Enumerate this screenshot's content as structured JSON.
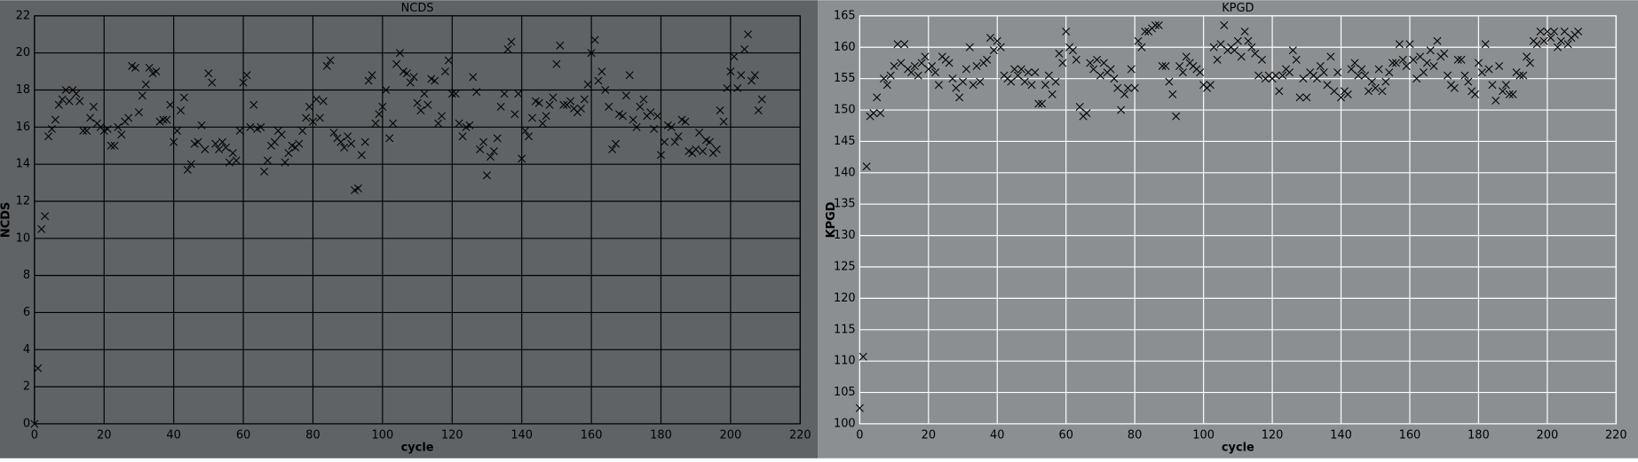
{
  "chart_data": [
    {
      "type": "scatter",
      "title": "NCDS",
      "x_label": "cycle",
      "y_label": "NCDS",
      "color": "#000000",
      "grid": true,
      "grid_color": "#000000",
      "xlim": [
        0,
        220
      ],
      "xticks": [
        0,
        20,
        40,
        60,
        80,
        100,
        120,
        140,
        160,
        180,
        200,
        220
      ],
      "ylim": [
        0,
        22
      ],
      "yticks": [
        0,
        2,
        4,
        6,
        8,
        10,
        12,
        14,
        16,
        18,
        20,
        22
      ],
      "x": [
        0,
        1,
        2,
        3,
        4,
        5,
        6,
        7,
        8,
        9,
        10,
        11,
        12,
        13,
        14,
        15,
        16,
        17,
        18,
        19,
        20,
        21,
        22,
        23,
        24,
        25,
        26,
        27,
        28,
        29,
        30,
        31,
        32,
        33,
        34,
        35,
        36,
        37,
        38,
        39,
        40,
        41,
        42,
        43,
        44,
        45,
        46,
        47,
        48,
        49,
        50,
        51,
        52,
        53,
        54,
        55,
        56,
        57,
        58,
        59,
        60,
        61,
        62,
        63,
        64,
        65,
        66,
        67,
        68,
        69,
        70,
        71,
        72,
        73,
        74,
        75,
        76,
        77,
        78,
        79,
        80,
        81,
        82,
        83,
        84,
        85,
        86,
        87,
        88,
        89,
        90,
        91,
        92,
        93,
        94,
        95,
        96,
        97,
        98,
        99,
        100,
        101,
        102,
        103,
        104,
        105,
        106,
        107,
        108,
        109,
        110,
        111,
        112,
        113,
        114,
        115,
        116,
        117,
        118,
        119,
        120,
        121,
        122,
        123,
        124,
        125,
        126,
        127,
        128,
        129,
        130,
        131,
        132,
        133,
        134,
        135,
        136,
        137,
        138,
        139,
        140,
        141,
        142,
        143,
        144,
        145,
        146,
        147,
        148,
        149,
        150,
        151,
        152,
        153,
        154,
        155,
        156,
        157,
        158,
        159,
        160,
        161,
        162,
        163,
        164,
        165,
        166,
        167,
        168,
        169,
        170,
        171,
        172,
        173,
        174,
        175,
        176,
        177,
        178,
        179,
        180,
        181,
        182,
        183,
        184,
        185,
        186,
        187,
        188,
        189,
        190,
        191,
        192,
        193,
        194,
        195,
        196,
        197,
        198,
        199,
        200,
        201,
        202,
        203,
        204,
        205,
        206,
        207,
        208,
        209
      ],
      "values": [
        0,
        3.0,
        10.5,
        11.2,
        15.5,
        15.9,
        16.4,
        17.2,
        17.5,
        18.0,
        17.4,
        18.0,
        17.8,
        17.4,
        15.8,
        15.8,
        16.5,
        17.1,
        16.2,
        16.0,
        15.8,
        15.9,
        15.0,
        15.0,
        16.0,
        15.6,
        16.3,
        16.5,
        19.3,
        19.2,
        16.8,
        17.7,
        18.3,
        19.2,
        18.9,
        19.0,
        16.3,
        16.4,
        16.4,
        17.2,
        15.2,
        15.8,
        16.9,
        17.6,
        13.7,
        14.0,
        15.1,
        15.2,
        16.1,
        14.8,
        18.9,
        18.4,
        15.1,
        14.8,
        15.2,
        14.9,
        14.1,
        14.6,
        14.2,
        15.8,
        18.4,
        18.8,
        16.0,
        17.2,
        15.9,
        16.0,
        13.6,
        14.2,
        15.0,
        15.2,
        15.8,
        15.6,
        14.1,
        14.6,
        15.0,
        14.9,
        15.1,
        15.8,
        16.5,
        17.1,
        16.3,
        17.5,
        16.5,
        17.4,
        19.3,
        19.6,
        15.7,
        15.4,
        15.2,
        14.9,
        15.5,
        15.1,
        12.6,
        12.7,
        14.5,
        15.2,
        18.5,
        18.8,
        16.2,
        16.7,
        17.1,
        18.0,
        15.4,
        16.2,
        19.4,
        20.0,
        19.0,
        18.9,
        18.4,
        18.7,
        17.3,
        16.9,
        17.8,
        17.2,
        18.6,
        18.5,
        16.2,
        16.6,
        19.0,
        19.6,
        17.8,
        17.8,
        16.2,
        15.5,
        16.0,
        16.1,
        18.7,
        17.9,
        14.8,
        15.2,
        13.4,
        14.4,
        14.7,
        15.4,
        17.1,
        17.8,
        20.2,
        20.6,
        16.7,
        17.8,
        14.3,
        15.8,
        15.5,
        16.5,
        17.4,
        17.3,
        16.2,
        16.6,
        17.2,
        17.6,
        19.4,
        20.4,
        17.2,
        17.2,
        17.4,
        17.0,
        16.8,
        17.0,
        17.5,
        18.3,
        20.0,
        20.7,
        18.5,
        19.0,
        18.0,
        17.1,
        14.8,
        15.1,
        16.7,
        16.6,
        17.7,
        18.8,
        16.4,
        16.0,
        17.1,
        17.5,
        16.6,
        16.8,
        15.9,
        16.6,
        14.5,
        15.2,
        16.1,
        16.0,
        15.2,
        15.5,
        16.4,
        16.3,
        14.7,
        14.6,
        14.8,
        15.7,
        14.7,
        15.3,
        15.2,
        14.6,
        14.8,
        16.9,
        16.3,
        18.1,
        19.0,
        19.8,
        18.1,
        18.8,
        20.2,
        21.0,
        18.5,
        18.8,
        16.9,
        17.5
      ]
    },
    {
      "type": "scatter",
      "title": "KPGD",
      "x_label": "cycle",
      "y_label": "KPGD",
      "color": "#000000",
      "grid": true,
      "grid_color": "#ffffff",
      "xlim": [
        0,
        220
      ],
      "xticks": [
        0,
        20,
        40,
        60,
        80,
        100,
        120,
        140,
        160,
        180,
        200,
        220
      ],
      "ylim": [
        100,
        165
      ],
      "yticks": [
        100,
        105,
        110,
        115,
        120,
        125,
        130,
        135,
        140,
        145,
        150,
        155,
        160,
        165
      ],
      "x": [
        0,
        1,
        2,
        3,
        4,
        5,
        6,
        7,
        8,
        9,
        10,
        11,
        12,
        13,
        14,
        15,
        16,
        17,
        18,
        19,
        20,
        21,
        22,
        23,
        24,
        25,
        26,
        27,
        28,
        29,
        30,
        31,
        32,
        33,
        34,
        35,
        36,
        37,
        38,
        39,
        40,
        41,
        42,
        43,
        44,
        45,
        46,
        47,
        48,
        49,
        50,
        51,
        52,
        53,
        54,
        55,
        56,
        57,
        58,
        59,
        60,
        61,
        62,
        63,
        64,
        65,
        66,
        67,
        68,
        69,
        70,
        71,
        72,
        73,
        74,
        75,
        76,
        77,
        78,
        79,
        80,
        81,
        82,
        83,
        84,
        85,
        86,
        87,
        88,
        89,
        90,
        91,
        92,
        93,
        94,
        95,
        96,
        97,
        98,
        99,
        100,
        101,
        102,
        103,
        104,
        105,
        106,
        107,
        108,
        109,
        110,
        111,
        112,
        113,
        114,
        115,
        116,
        117,
        118,
        119,
        120,
        121,
        122,
        123,
        124,
        125,
        126,
        127,
        128,
        129,
        130,
        131,
        132,
        133,
        134,
        135,
        136,
        137,
        138,
        139,
        140,
        141,
        142,
        143,
        144,
        145,
        146,
        147,
        148,
        149,
        150,
        151,
        152,
        153,
        154,
        155,
        156,
        157,
        158,
        159,
        160,
        161,
        162,
        163,
        164,
        165,
        166,
        167,
        168,
        169,
        170,
        171,
        172,
        173,
        174,
        175,
        176,
        177,
        178,
        179,
        180,
        181,
        182,
        183,
        184,
        185,
        186,
        187,
        188,
        189,
        190,
        191,
        192,
        193,
        194,
        195,
        196,
        197,
        198,
        199,
        200,
        201,
        202,
        203,
        204,
        205,
        206,
        207,
        208,
        209
      ],
      "values": [
        102.5,
        110.7,
        141,
        149,
        149.5,
        152,
        149.5,
        155,
        154,
        155.5,
        157,
        160.5,
        157.5,
        160.5,
        156.5,
        156,
        157,
        155.5,
        157.5,
        158.5,
        156.5,
        157,
        156,
        154,
        158.5,
        158,
        157.5,
        155,
        153.5,
        152,
        154.5,
        156.5,
        160,
        154,
        157,
        154.5,
        157.5,
        158,
        161.5,
        159.5,
        161,
        160,
        155.5,
        155,
        154.5,
        156.5,
        155.5,
        156.5,
        154.5,
        156,
        154,
        156,
        151,
        151,
        154,
        155.5,
        152.5,
        154.5,
        159,
        157.5,
        162.5,
        160,
        159.5,
        158,
        150.5,
        149,
        149.5,
        157.5,
        156.5,
        158,
        155.5,
        157.5,
        156,
        156.5,
        155,
        153.5,
        150,
        152.5,
        153.5,
        156.5,
        153.5,
        161,
        160,
        162.5,
        162.5,
        163,
        163.5,
        163.5,
        157,
        157,
        154.5,
        152.5,
        149,
        157,
        156,
        158.5,
        157.5,
        157,
        156.5,
        156,
        154,
        153.5,
        154,
        160,
        158,
        160.5,
        163.5,
        159.5,
        160,
        159.5,
        161,
        158.5,
        162.5,
        161,
        160,
        159,
        155.5,
        158,
        155,
        155.5,
        155,
        155.5,
        153,
        155.5,
        156.5,
        156,
        159.5,
        158,
        152,
        155,
        152,
        156,
        155.5,
        155,
        157,
        156,
        154,
        158.5,
        153,
        156,
        152,
        153,
        152.5,
        156.5,
        157.5,
        155.5,
        156.5,
        155.5,
        153,
        154.5,
        153.5,
        156.5,
        153,
        154.5,
        156,
        157.5,
        157.5,
        160.5,
        158,
        157,
        160.5,
        158,
        155,
        158.5,
        156,
        157.5,
        159.5,
        157,
        161,
        158.5,
        159,
        155.5,
        154,
        153.5,
        158,
        158,
        155.5,
        154.5,
        153,
        152.5,
        157.5,
        156,
        160.5,
        156.5,
        154,
        151.5,
        157,
        153,
        154,
        152.5,
        152.5,
        156,
        155.5,
        155.5,
        158.5,
        157.5,
        161,
        160.5,
        162.5,
        161,
        162.5,
        161.5,
        162.5,
        160,
        161,
        162.5,
        160.5,
        161.5,
        162,
        162.5
      ]
    }
  ]
}
